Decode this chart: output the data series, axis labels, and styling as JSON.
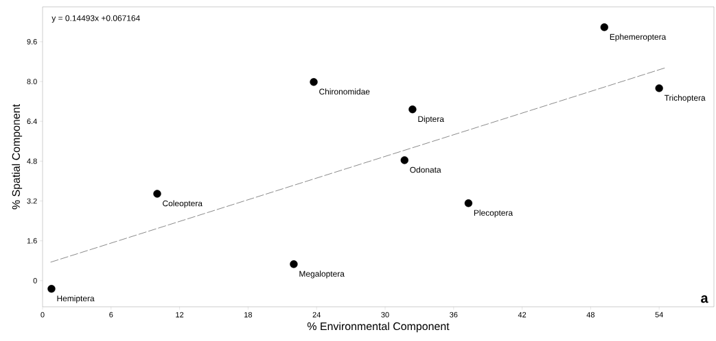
{
  "chart_data": {
    "type": "scatter",
    "xlabel": "% Environmental Component",
    "ylabel": "% Spatial Component",
    "xlim": [
      0,
      58.8
    ],
    "ylim": [
      -1.05,
      11.0
    ],
    "xticks": [
      0,
      6,
      12,
      18,
      24,
      30,
      36,
      42,
      48,
      54
    ],
    "yticks": [
      0,
      1.6,
      3.2,
      4.8,
      6.4,
      {
        "value": 8,
        "label": "8.0"
      },
      9.6
    ],
    "grid": false,
    "series": [
      {
        "type": "scatter",
        "marker": "circle",
        "color": "#000000",
        "x": [
          0.78,
          22.0,
          10.04,
          23.75,
          32.4,
          31.7,
          37.3,
          49.2,
          54.0
        ],
        "values": [
          -0.33,
          0.66,
          3.49,
          7.98,
          6.88,
          4.84,
          3.11,
          10.18,
          7.73
        ]
      },
      {
        "type": "line",
        "color": "#555555",
        "line_style": "dashed",
        "marker": "none",
        "x": [
          0.7,
          54.6
        ],
        "values": [
          0.74,
          8.56
        ]
      }
    ],
    "annotations": [
      "y = 0.14493x +0.067164",
      "a",
      {
        "text": "Hemiptera",
        "x": 0.78,
        "y": -0.33
      },
      {
        "text": "Megaloptera",
        "x": 22.0,
        "y": 0.66
      },
      {
        "text": "Coleoptera",
        "x": 10.04,
        "y": 3.49
      },
      {
        "text": "Chironomidae",
        "x": 23.75,
        "y": 7.98
      },
      {
        "text": "Diptera",
        "x": 32.4,
        "y": 6.88
      },
      {
        "text": "Odonata",
        "x": 31.7,
        "y": 4.84
      },
      {
        "text": "Plecoptera",
        "x": 37.3,
        "y": 3.11
      },
      {
        "text": "Ephemeroptera",
        "x": 49.2,
        "y": 10.18
      },
      {
        "text": "Trichoptera",
        "x": 54.0,
        "y": 7.73
      }
    ]
  }
}
